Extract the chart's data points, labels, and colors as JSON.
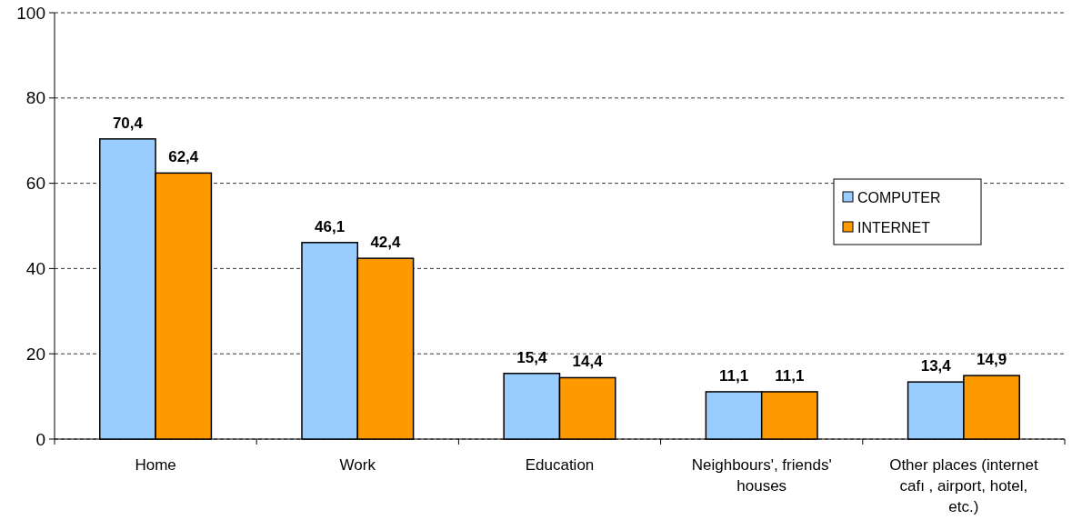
{
  "chart_data": {
    "type": "bar",
    "categories": [
      "Home",
      "Work",
      "Education",
      "Neighbours', friends' houses",
      "Other places (internet cafı , airport, hotel, etc.)"
    ],
    "series": [
      {
        "name": "COMPUTER",
        "color": "#99ccff",
        "values": [
          70.4,
          46.1,
          15.4,
          11.1,
          13.4
        ],
        "value_labels": [
          "70,4",
          "46,1",
          "15,4",
          "11,1",
          "13,4"
        ]
      },
      {
        "name": "INTERNET",
        "color": "#ff9900",
        "values": [
          62.4,
          42.4,
          14.4,
          11.1,
          14.9
        ],
        "value_labels": [
          "62,4",
          "42,4",
          "14,4",
          "11,1",
          "14,9"
        ]
      }
    ],
    "ylim": [
      0,
      100
    ],
    "yticks": [
      0,
      20,
      40,
      60,
      80,
      100
    ],
    "grid": "y",
    "legend": "right"
  }
}
